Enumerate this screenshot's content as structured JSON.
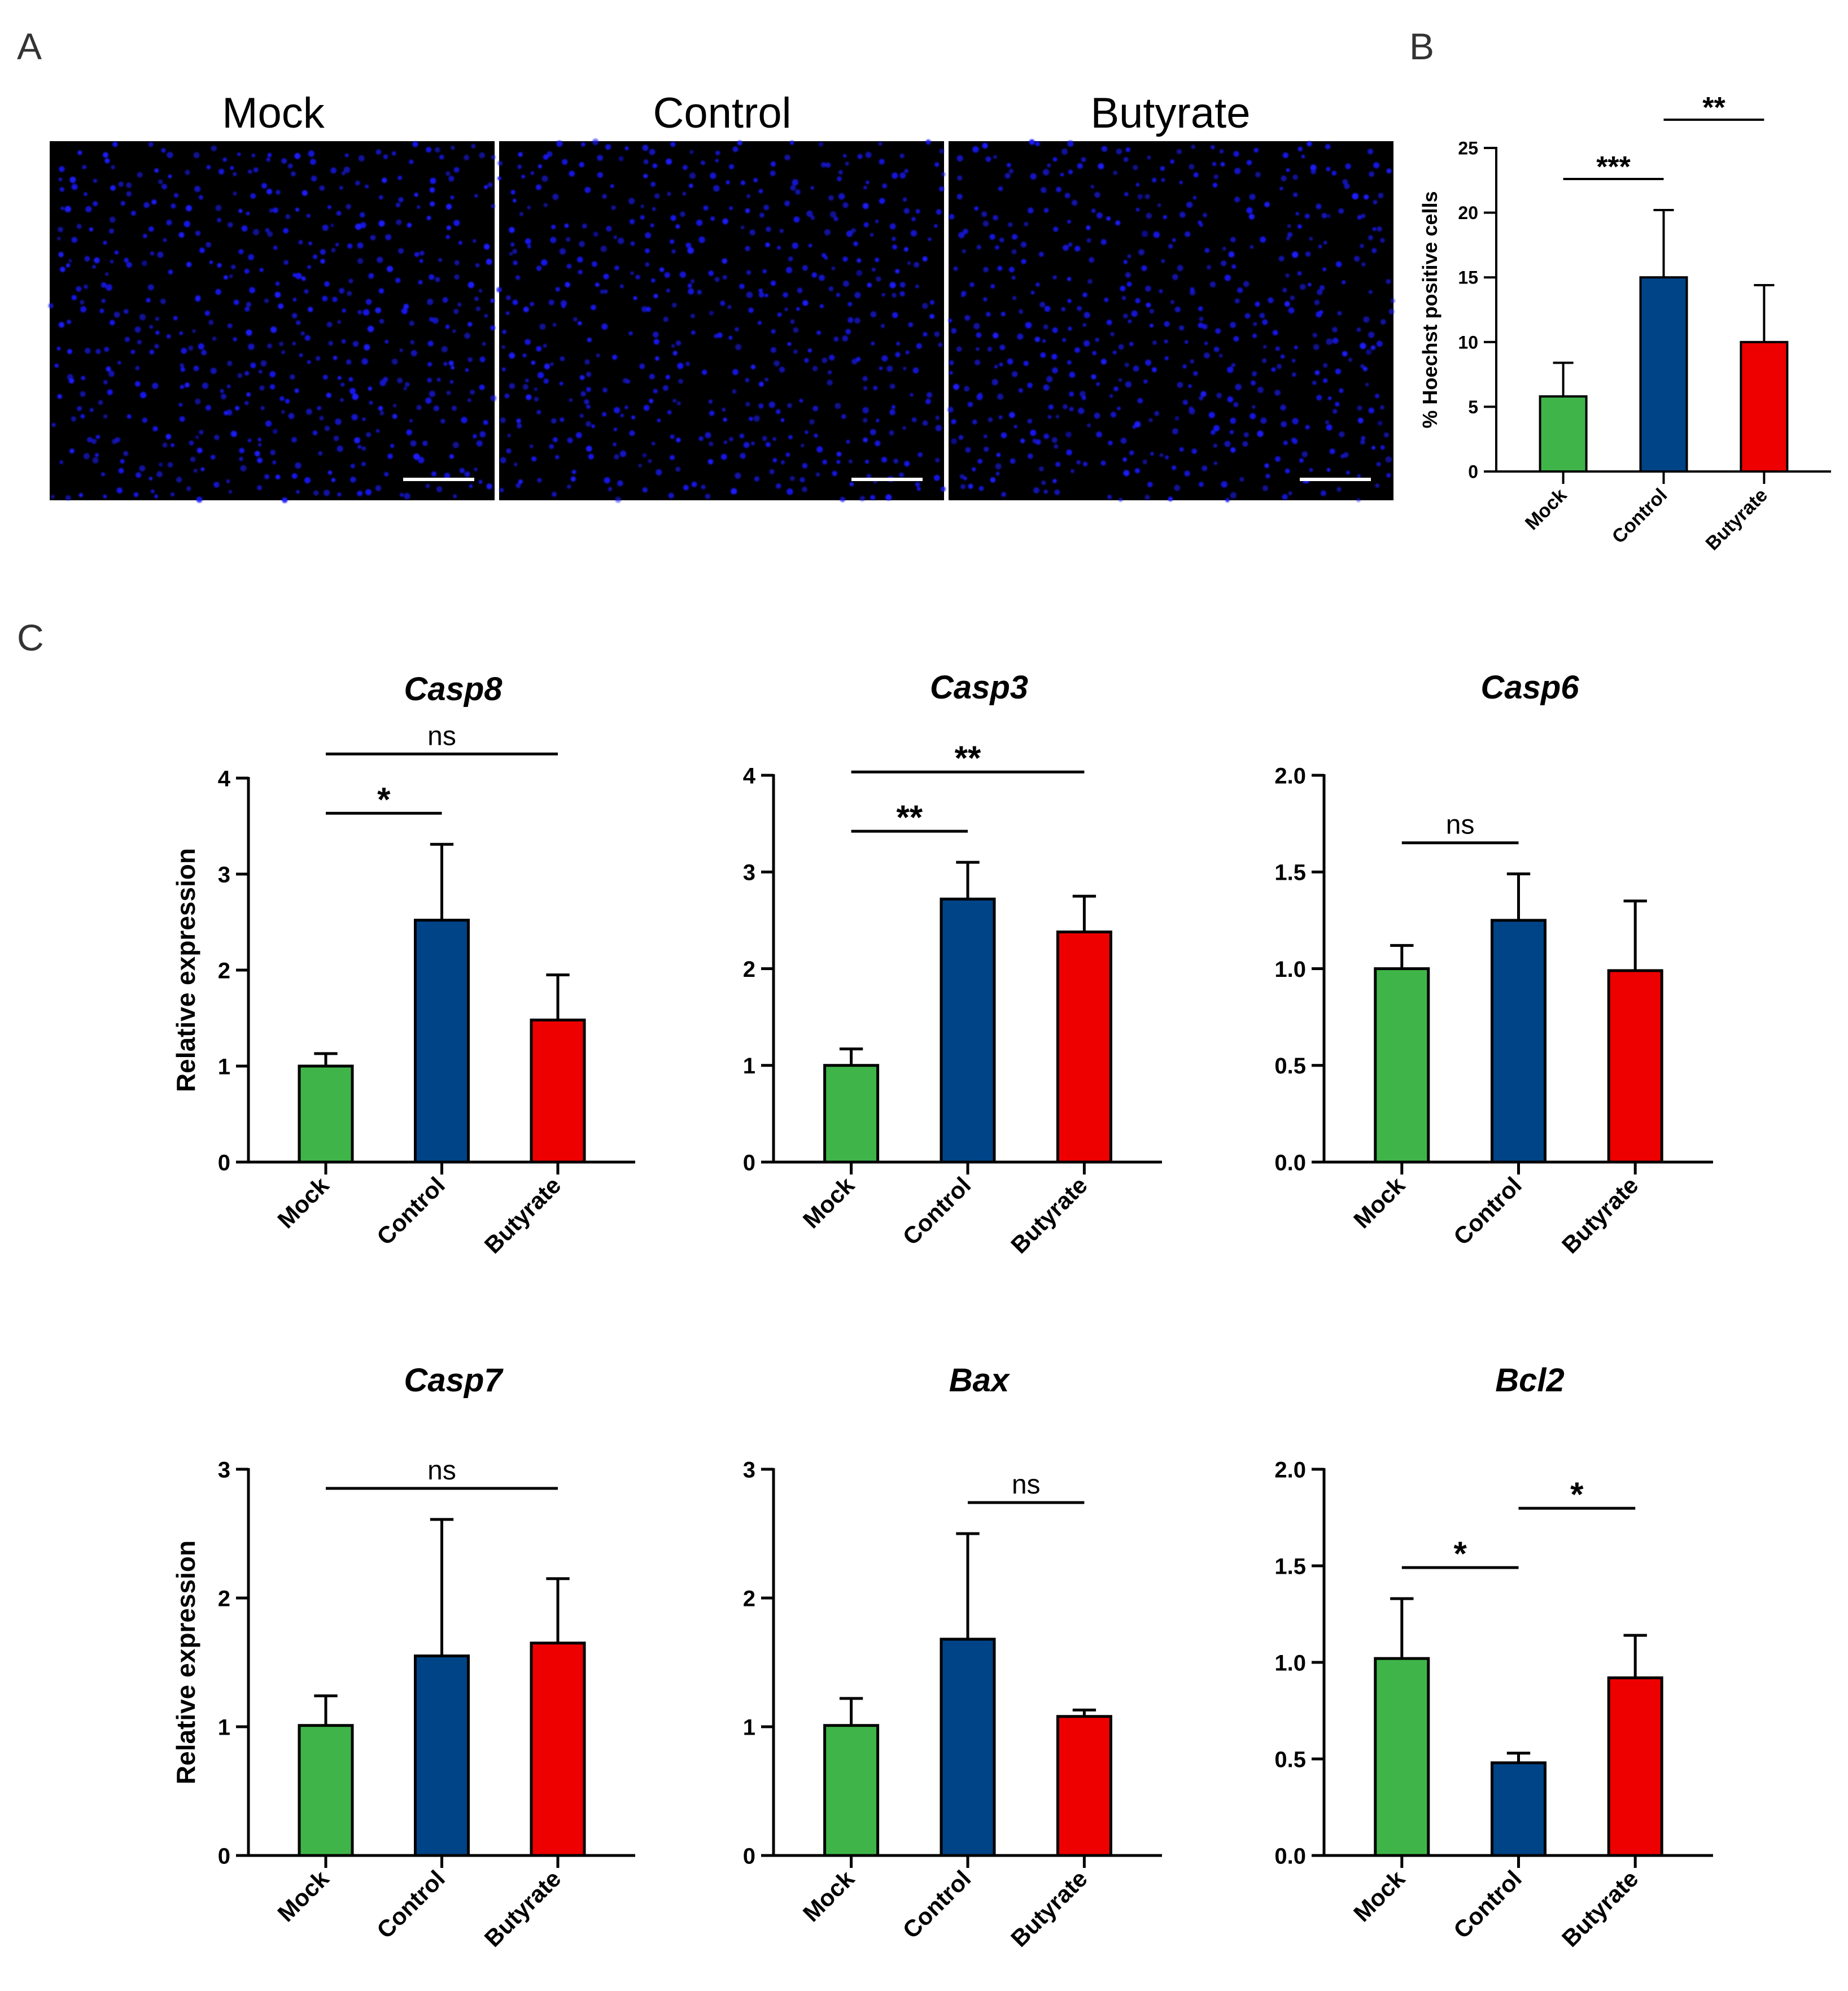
{
  "panels": {
    "a": "A",
    "b": "B",
    "c": "C"
  },
  "colors": {
    "mock": "#3fb549",
    "control": "#004488",
    "butyrate": "#ee0000",
    "nuclei": "#1a1aff",
    "background": "#000000",
    "scalebar": "#ffffff",
    "axis": "#000000"
  },
  "micrographs": [
    {
      "label": "Mock",
      "seed": 11
    },
    {
      "label": "Control",
      "seed": 23
    },
    {
      "label": "Butyrate",
      "seed": 37
    }
  ],
  "chart_data": [
    {
      "id": "hoechst",
      "panel": "B",
      "type": "bar",
      "title": "",
      "ylabel": "% Hoechst positive cells",
      "categories": [
        "Mock",
        "Control",
        "Butyrate"
      ],
      "values": [
        5.8,
        15.0,
        10.0
      ],
      "errors": [
        2.6,
        5.2,
        4.4
      ],
      "ylim": [
        0,
        25
      ],
      "yticks": [
        0,
        5,
        10,
        15,
        20,
        25
      ],
      "ytick_labels": [
        "0",
        "5",
        "10",
        "15",
        "20",
        "25"
      ],
      "significance": [
        {
          "from": 0,
          "to": 1,
          "label": "***"
        },
        {
          "from": 1,
          "to": 2,
          "label": "**"
        }
      ]
    },
    {
      "id": "casp8",
      "panel": "C",
      "type": "bar",
      "title": "Casp8",
      "ylabel": "Relative expression",
      "categories": [
        "Mock",
        "Control",
        "Butyrate"
      ],
      "values": [
        1.0,
        2.52,
        1.48
      ],
      "errors": [
        0.13,
        0.79,
        0.47
      ],
      "ylim": [
        0,
        4
      ],
      "yticks": [
        0,
        1,
        2,
        3,
        4
      ],
      "ytick_labels": [
        "0",
        "1",
        "2",
        "3",
        "4"
      ],
      "significance": [
        {
          "from": 0,
          "to": 1,
          "label": "*"
        },
        {
          "from": 0,
          "to": 2,
          "label": "ns"
        }
      ]
    },
    {
      "id": "casp3",
      "panel": "C",
      "type": "bar",
      "title": "Casp3",
      "ylabel": "",
      "categories": [
        "Mock",
        "Control",
        "Butyrate"
      ],
      "values": [
        1.0,
        2.72,
        2.38
      ],
      "errors": [
        0.17,
        0.38,
        0.37
      ],
      "ylim": [
        0,
        4
      ],
      "yticks": [
        0,
        1,
        2,
        3,
        4
      ],
      "ytick_labels": [
        "0",
        "1",
        "2",
        "3",
        "4"
      ],
      "significance": [
        {
          "from": 0,
          "to": 1,
          "label": "**"
        },
        {
          "from": 0,
          "to": 2,
          "label": "**"
        }
      ]
    },
    {
      "id": "casp6",
      "panel": "C",
      "type": "bar",
      "title": "Casp6",
      "ylabel": "",
      "categories": [
        "Mock",
        "Control",
        "Butyrate"
      ],
      "values": [
        1.0,
        1.25,
        0.99
      ],
      "errors": [
        0.12,
        0.24,
        0.36
      ],
      "ylim": [
        0,
        2
      ],
      "yticks": [
        0,
        0.5,
        1,
        1.5,
        2
      ],
      "ytick_labels": [
        "0.0",
        "0.5",
        "1.0",
        "1.5",
        "2.0"
      ],
      "significance": [
        {
          "from": 0,
          "to": 1,
          "label": "ns"
        }
      ]
    },
    {
      "id": "casp7",
      "panel": "C",
      "type": "bar",
      "title": "Casp7",
      "ylabel": "Relative expression",
      "categories": [
        "Mock",
        "Control",
        "Butyrate"
      ],
      "values": [
        1.01,
        1.55,
        1.65
      ],
      "errors": [
        0.23,
        1.06,
        0.5
      ],
      "ylim": [
        0,
        3
      ],
      "yticks": [
        0,
        1,
        2,
        3
      ],
      "ytick_labels": [
        "0",
        "1",
        "2",
        "3"
      ],
      "significance": [
        {
          "from": 0,
          "to": 2,
          "label": "ns"
        }
      ]
    },
    {
      "id": "bax",
      "panel": "C",
      "type": "bar",
      "title": "Bax",
      "ylabel": "",
      "categories": [
        "Mock",
        "Control",
        "Butyrate"
      ],
      "values": [
        1.01,
        1.68,
        1.08
      ],
      "errors": [
        0.21,
        0.82,
        0.05
      ],
      "ylim": [
        0,
        3
      ],
      "yticks": [
        0,
        1,
        2,
        3
      ],
      "ytick_labels": [
        "0",
        "1",
        "2",
        "3"
      ],
      "significance": [
        {
          "from": 1,
          "to": 2,
          "label": "ns"
        }
      ]
    },
    {
      "id": "bcl2",
      "panel": "C",
      "type": "bar",
      "title": "Bcl2",
      "ylabel": "",
      "categories": [
        "Mock",
        "Control",
        "Butyrate"
      ],
      "values": [
        1.02,
        0.48,
        0.92
      ],
      "errors": [
        0.31,
        0.05,
        0.22
      ],
      "ylim": [
        0,
        2
      ],
      "yticks": [
        0,
        0.5,
        1,
        1.5,
        2
      ],
      "ytick_labels": [
        "0.0",
        "0.5",
        "1.0",
        "1.5",
        "2.0"
      ],
      "significance": [
        {
          "from": 0,
          "to": 1,
          "label": "*"
        },
        {
          "from": 1,
          "to": 2,
          "label": "*"
        }
      ]
    }
  ]
}
